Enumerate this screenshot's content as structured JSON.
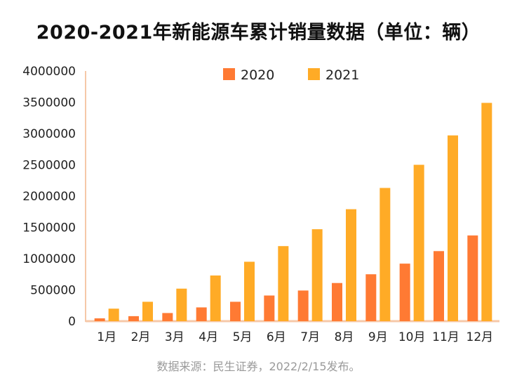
{
  "chart_data": {
    "type": "bar",
    "title": "2020-2021年新能源车累计销量数据（单位：辆）",
    "categories": [
      "1月",
      "2月",
      "3月",
      "4月",
      "5月",
      "6月",
      "7月",
      "8月",
      "9月",
      "10月",
      "11月",
      "12月"
    ],
    "series": [
      {
        "name": "2020",
        "color": "#ff7a33",
        "values": [
          45000,
          80000,
          130000,
          220000,
          310000,
          410000,
          490000,
          610000,
          750000,
          920000,
          1120000,
          1370000
        ]
      },
      {
        "name": "2021",
        "color": "#ffab26",
        "values": [
          200000,
          310000,
          520000,
          730000,
          950000,
          1200000,
          1470000,
          1790000,
          2130000,
          2500000,
          2970000,
          3490000
        ]
      }
    ],
    "yticks": [
      0,
      500000,
      1000000,
      1500000,
      2000000,
      2500000,
      3000000,
      3500000,
      4000000
    ],
    "ylim": [
      0,
      4000000
    ],
    "xlabel": "",
    "ylabel": "",
    "legend_position": "top-center",
    "grid": false,
    "axis_color": "#f6c8a8"
  },
  "source": "数据来源：民生证券，2022/2/15发布。"
}
